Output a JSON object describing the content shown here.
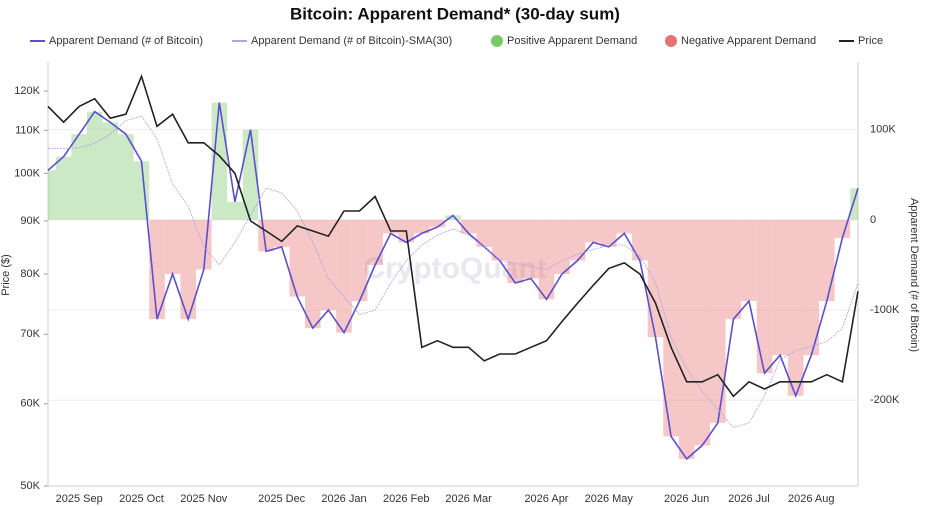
{
  "chart_data": {
    "type": "line",
    "title": "Bitcoin: Apparent Demand* (30-day sum)",
    "watermark": "CryptoQuant",
    "y_label": "Price ($)",
    "y2_label": "Apparent Demand (# of Bitcoin)",
    "categories": [
      null,
      null,
      "2025 Sep",
      null,
      null,
      null,
      "2025 Oct",
      null,
      null,
      null,
      "2025 Nov",
      null,
      null,
      null,
      null,
      "2025 Dec",
      null,
      null,
      null,
      "2026 Jan",
      null,
      null,
      null,
      "2026 Feb",
      null,
      null,
      null,
      "2026 Mar",
      null,
      null,
      null,
      null,
      "2026 Apr",
      null,
      null,
      null,
      "2026 May",
      null,
      null,
      null,
      null,
      "2026 Jun",
      null,
      null,
      null,
      "2026 Jul",
      null,
      null,
      null,
      "2026 Aug",
      null,
      null,
      null
    ],
    "series": [
      {
        "name": "Apparent Demand (# of Bitcoin)",
        "color": "#5b4fd0",
        "axis": "y2",
        "values": [
          55000,
          70000,
          95000,
          120000,
          108000,
          95000,
          65000,
          -110000,
          -60000,
          -110000,
          -55000,
          130000,
          20000,
          100000,
          -35000,
          -30000,
          -85000,
          -120000,
          -100000,
          -125000,
          -90000,
          -50000,
          -15000,
          -25000,
          -15000,
          -8000,
          5000,
          -15000,
          -30000,
          -45000,
          -70000,
          -65000,
          -88000,
          -60000,
          -45000,
          -25000,
          -30000,
          -15000,
          -45000,
          -130000,
          -240000,
          -265000,
          -250000,
          -225000,
          -110000,
          -90000,
          -170000,
          -150000,
          -195000,
          -150000,
          -90000,
          -20000,
          35000
        ]
      },
      {
        "name": "Apparent Demand (# of Bitcoin)-SMA(30)",
        "color": "#a9a3ea",
        "axis": "y2",
        "values": [
          79000,
          79000,
          80000,
          85000,
          95000,
          110000,
          115000,
          90000,
          40000,
          15000,
          -30000,
          -50000,
          -25000,
          5000,
          35000,
          30000,
          10000,
          -25000,
          -65000,
          -85000,
          -105000,
          -100000,
          -70000,
          -45000,
          -28000,
          -17000,
          -10000,
          -17000,
          -30000,
          -45000,
          -48000,
          -52000,
          -55000,
          -45000,
          -38000,
          -33000,
          -28000,
          -28000,
          -40000,
          -70000,
          -130000,
          -165000,
          -190000,
          -210000,
          -230000,
          -225000,
          -195000,
          -155000,
          -145000,
          -140000,
          -135000,
          -120000,
          -70000
        ]
      },
      {
        "name": "Price",
        "color": "#222222",
        "axis": "y",
        "values": [
          116000,
          112000,
          116000,
          118000,
          113000,
          114000,
          124000,
          111000,
          114000,
          107000,
          107000,
          104000,
          100000,
          90000,
          88000,
          86000,
          89000,
          88000,
          87000,
          92000,
          92000,
          95000,
          88000,
          88000,
          68000,
          69000,
          68000,
          68000,
          66000,
          67000,
          67000,
          68000,
          69000,
          72000,
          75000,
          78000,
          81000,
          82000,
          80000,
          75000,
          68000,
          63000,
          63000,
          64000,
          61000,
          63000,
          62000,
          63000,
          63000,
          63000,
          64000,
          63000,
          77000
        ]
      }
    ],
    "bar_legend": [
      {
        "name": "Positive Apparent Demand",
        "color": "#7cc96c"
      },
      {
        "name": "Negative Apparent Demand",
        "color": "#e57373"
      }
    ],
    "y_scale": "log",
    "ylim": [
      50000,
      128000
    ],
    "yticks": [
      {
        "value": 50000,
        "label": "50K"
      },
      {
        "value": 60000,
        "label": "60K"
      },
      {
        "value": 70000,
        "label": "70K"
      },
      {
        "value": 80000,
        "label": "80K"
      },
      {
        "value": 90000,
        "label": "90K"
      },
      {
        "value": 100000,
        "label": "100K"
      },
      {
        "value": 110000,
        "label": "110K"
      },
      {
        "value": 120000,
        "label": "120K"
      }
    ],
    "y2lim": [
      -295000,
      175000
    ],
    "y2ticks": [
      {
        "value": -200000,
        "label": "-200K"
      },
      {
        "value": -100000,
        "label": "-100K"
      },
      0,
      {
        "value": 100000,
        "label": "100K"
      }
    ],
    "grid": true
  }
}
